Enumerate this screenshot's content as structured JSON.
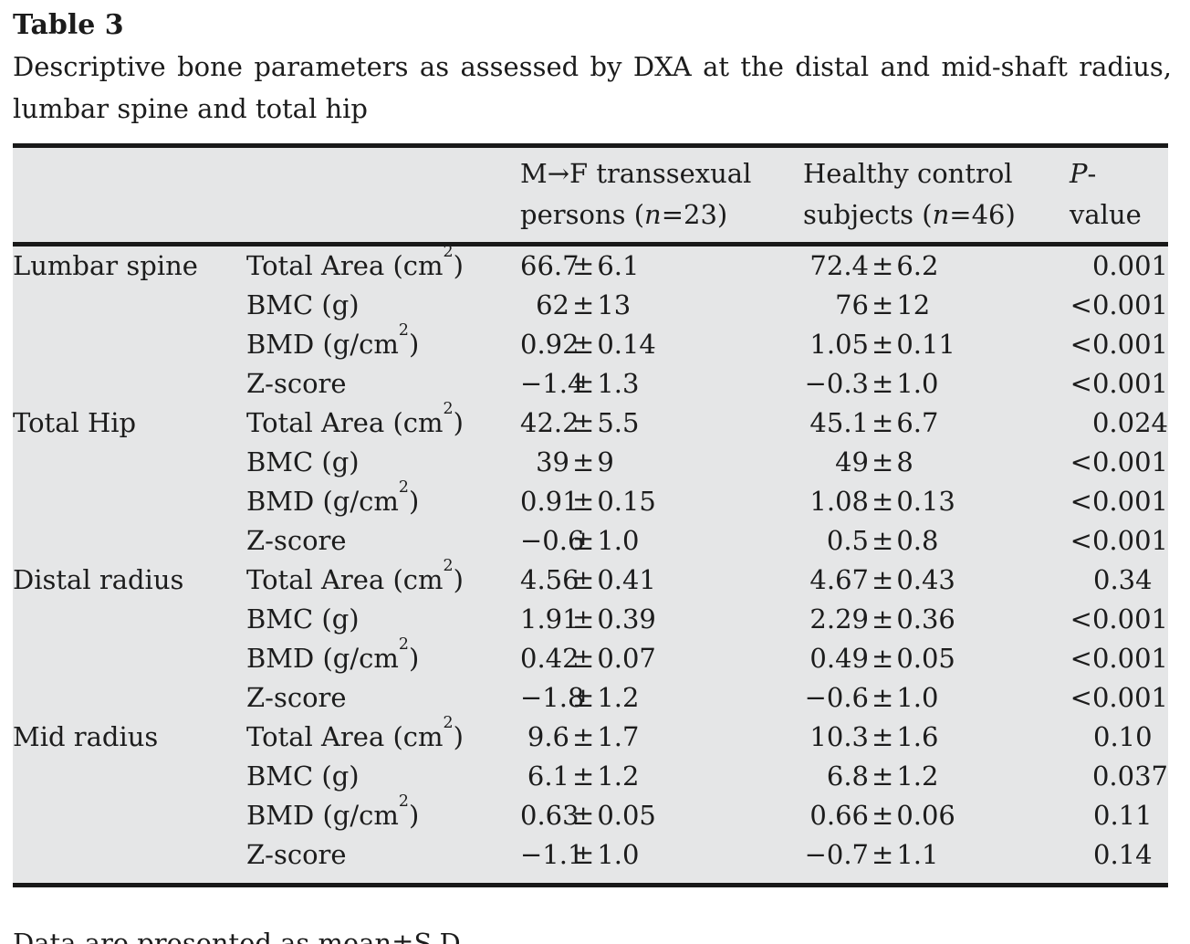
{
  "page": {
    "title": "Table 3",
    "caption_line1": "Descriptive bone parameters as assessed by DXA at the distal and mid-shaft radius,",
    "caption_line2": "lumbar spine and total hip",
    "footnote": "Data are presented as mean±S.D."
  },
  "header": {
    "col3": {
      "line1": "M→F transsexual",
      "line2_pre": "persons (",
      "n": "n",
      "line2_post": "=23)"
    },
    "col4": {
      "line1": "Healthy control",
      "line2_pre": "subjects (",
      "n": "n",
      "line2_post": "=46)"
    },
    "col5": {
      "p": "P",
      "rest": "-value"
    }
  },
  "colors": {
    "table_background": "#e5e6e7",
    "rule": "#191919",
    "text": "#1c1c1c"
  },
  "rows": [
    {
      "group": "Lumbar spine",
      "param_pre": "Total Area (cm",
      "param_sup": "2",
      "param_post": ")",
      "v1_mean": "66.7",
      "v1_sd": "6.1",
      "v2_mean": "72.4",
      "v2_sd": "6.2",
      "p_pfx": "",
      "p_val": "0.001"
    },
    {
      "group": "",
      "param_pre": "BMC (g)",
      "param_sup": "",
      "param_post": "",
      "v1_mean": "62",
      "v1_sd": "13",
      "v2_mean": "76",
      "v2_sd": "12",
      "p_pfx": "<",
      "p_val": "0.001"
    },
    {
      "group": "",
      "param_pre": "BMD (g/cm",
      "param_sup": "2",
      "param_post": ")",
      "v1_mean": "0.92",
      "v1_sd": "0.14",
      "v2_mean": "1.05",
      "v2_sd": "0.11",
      "p_pfx": "<",
      "p_val": "0.001"
    },
    {
      "group": "",
      "param_pre": "Z-score",
      "param_sup": "",
      "param_post": "",
      "v1_mean": "−1.4",
      "v1_sd": "1.3",
      "v2_mean": "−0.3",
      "v2_sd": "1.0",
      "p_pfx": "<",
      "p_val": "0.001"
    },
    {
      "group": "Total Hip",
      "param_pre": "Total Area (cm",
      "param_sup": "2",
      "param_post": ")",
      "v1_mean": "42.2",
      "v1_sd": "5.5",
      "v2_mean": "45.1",
      "v2_sd": "6.7",
      "p_pfx": "",
      "p_val": "0.024"
    },
    {
      "group": "",
      "param_pre": "BMC (g)",
      "param_sup": "",
      "param_post": "",
      "v1_mean": "39",
      "v1_sd": "9",
      "v2_mean": "49",
      "v2_sd": "8",
      "p_pfx": "<",
      "p_val": "0.001"
    },
    {
      "group": "",
      "param_pre": "BMD (g/cm",
      "param_sup": "2",
      "param_post": ")",
      "v1_mean": "0.91",
      "v1_sd": "0.15",
      "v2_mean": "1.08",
      "v2_sd": "0.13",
      "p_pfx": "<",
      "p_val": "0.001"
    },
    {
      "group": "",
      "param_pre": "Z-score",
      "param_sup": "",
      "param_post": "",
      "v1_mean": "−0.6",
      "v1_sd": "1.0",
      "v2_mean": "0.5",
      "v2_sd": "0.8",
      "p_pfx": "<",
      "p_val": "0.001"
    },
    {
      "group": "Distal radius",
      "param_pre": "Total Area (cm",
      "param_sup": "2",
      "param_post": ")",
      "v1_mean": "4.56",
      "v1_sd": "0.41",
      "v2_mean": "4.67",
      "v2_sd": "0.43",
      "p_pfx": "",
      "p_val": "0.34"
    },
    {
      "group": "",
      "param_pre": "BMC (g)",
      "param_sup": "",
      "param_post": "",
      "v1_mean": "1.91",
      "v1_sd": "0.39",
      "v2_mean": "2.29",
      "v2_sd": "0.36",
      "p_pfx": "<",
      "p_val": "0.001"
    },
    {
      "group": "",
      "param_pre": "BMD (g/cm",
      "param_sup": "2",
      "param_post": ")",
      "v1_mean": "0.42",
      "v1_sd": "0.07",
      "v2_mean": "0.49",
      "v2_sd": "0.05",
      "p_pfx": "<",
      "p_val": "0.001"
    },
    {
      "group": "",
      "param_pre": "Z-score",
      "param_sup": "",
      "param_post": "",
      "v1_mean": "−1.8",
      "v1_sd": "1.2",
      "v2_mean": "−0.6",
      "v2_sd": "1.0",
      "p_pfx": "<",
      "p_val": "0.001"
    },
    {
      "group": "Mid radius",
      "param_pre": "Total Area (cm",
      "param_sup": "2",
      "param_post": ")",
      "v1_mean": "9.6",
      "v1_sd": "1.7",
      "v2_mean": "10.3",
      "v2_sd": "1.6",
      "p_pfx": "",
      "p_val": "0.10"
    },
    {
      "group": "",
      "param_pre": "BMC (g)",
      "param_sup": "",
      "param_post": "",
      "v1_mean": "6.1",
      "v1_sd": "1.2",
      "v2_mean": "6.8",
      "v2_sd": "1.2",
      "p_pfx": "",
      "p_val": "0.037"
    },
    {
      "group": "",
      "param_pre": "BMD (g/cm",
      "param_sup": "2",
      "param_post": ")",
      "v1_mean": "0.63",
      "v1_sd": "0.05",
      "v2_mean": "0.66",
      "v2_sd": "0.06",
      "p_pfx": "",
      "p_val": "0.11"
    },
    {
      "group": "",
      "param_pre": "Z-score",
      "param_sup": "",
      "param_post": "",
      "v1_mean": "−1.1",
      "v1_sd": "1.0",
      "v2_mean": "−0.7",
      "v2_sd": "1.1",
      "p_pfx": "",
      "p_val": "0.14"
    }
  ]
}
